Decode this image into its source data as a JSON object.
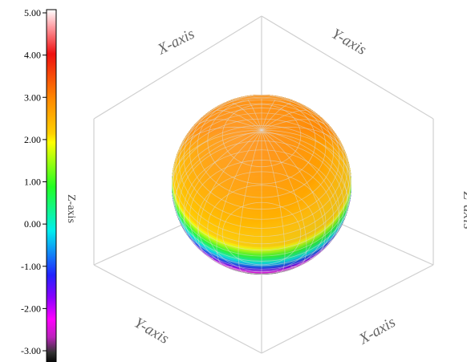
{
  "chart_data": {
    "type": "surface3d",
    "surface": "sphere",
    "colorbar": {
      "title": "Z-axis",
      "range": [
        -3.0,
        5.0
      ],
      "ticks": [
        "5.00",
        "4.00",
        "3.00",
        "2.00",
        "1.00",
        "0.00",
        "-1.00",
        "-2.00",
        "-3.00"
      ],
      "tick_values": [
        5,
        4,
        3,
        2,
        1,
        0,
        -1,
        -2,
        -3
      ],
      "colors": [
        {
          "value": 5.0,
          "color": "#ffffff"
        },
        {
          "value": 4.6,
          "color": "#ff9aa0"
        },
        {
          "value": 4.0,
          "color": "#ee1010"
        },
        {
          "value": 3.0,
          "color": "#ff8800"
        },
        {
          "value": 2.2,
          "color": "#ffd000"
        },
        {
          "value": 2.0,
          "color": "#ffff00"
        },
        {
          "value": 1.0,
          "color": "#22ff22"
        },
        {
          "value": 0.0,
          "color": "#00eeee"
        },
        {
          "value": -1.0,
          "color": "#2222ff"
        },
        {
          "value": -1.5,
          "color": "#8800ff"
        },
        {
          "value": -2.0,
          "color": "#ff00ff"
        },
        {
          "value": -2.4,
          "color": "#bb22bb"
        },
        {
          "value": -2.75,
          "color": "#333333"
        },
        {
          "value": -3.0,
          "color": "#000000"
        }
      ]
    },
    "axes": {
      "x_label": "X-axis",
      "y_label": "Y-axis",
      "z_label": "Z-axis"
    },
    "grid": true,
    "legend_placement": "left"
  }
}
